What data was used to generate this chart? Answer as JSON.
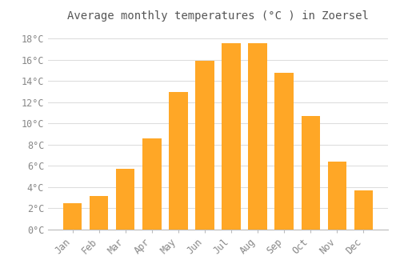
{
  "title": "Average monthly temperatures (°C ) in Zoersel",
  "months": [
    "Jan",
    "Feb",
    "Mar",
    "Apr",
    "May",
    "Jun",
    "Jul",
    "Aug",
    "Sep",
    "Oct",
    "Nov",
    "Dec"
  ],
  "values": [
    2.5,
    3.2,
    5.7,
    8.6,
    13.0,
    15.9,
    17.6,
    17.6,
    14.8,
    10.7,
    6.4,
    3.7
  ],
  "bar_color": "#FFA726",
  "bar_color_top": "#FFB74D",
  "background_color": "#FFFFFF",
  "plot_bg_color": "#FFFFFF",
  "grid_color": "#DDDDDD",
  "text_color": "#888888",
  "title_color": "#555555",
  "ylim": [
    0,
    19
  ],
  "yticks": [
    0,
    2,
    4,
    6,
    8,
    10,
    12,
    14,
    16,
    18
  ],
  "title_fontsize": 10,
  "tick_fontsize": 8.5
}
